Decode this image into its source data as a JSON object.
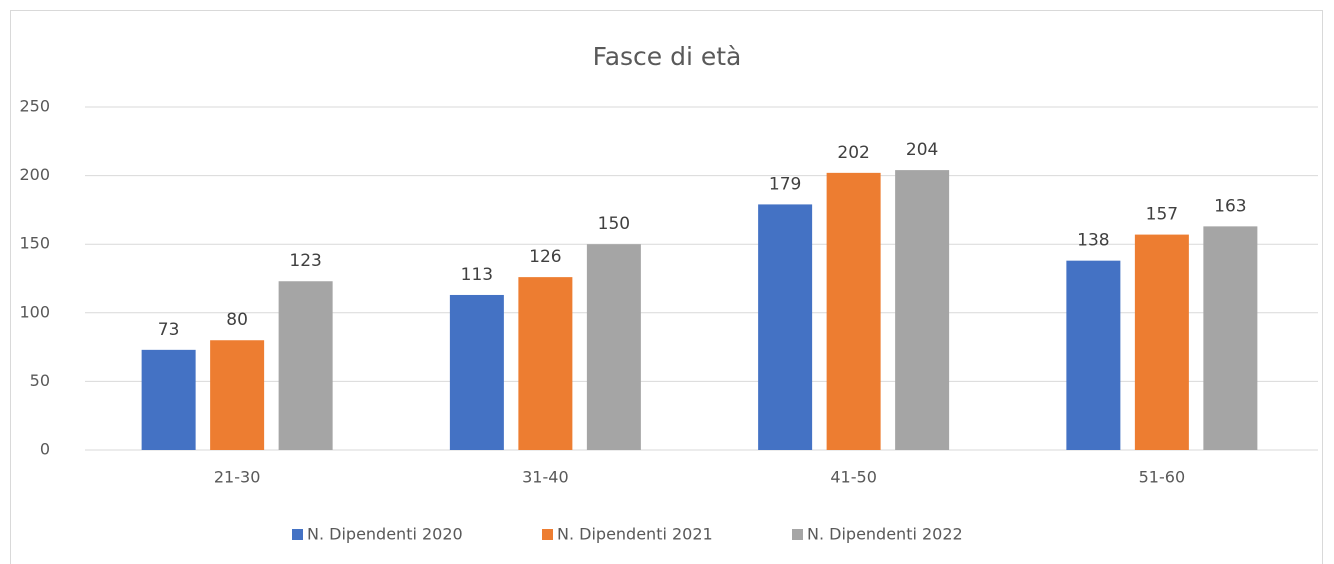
{
  "chart_data": {
    "type": "bar",
    "title": "Fasce di età",
    "categories": [
      "21-30",
      "31-40",
      "41-50",
      "51-60"
    ],
    "series": [
      {
        "name": "N. Dipendenti 2020",
        "color": "#4472c4",
        "values": [
          73,
          113,
          179,
          138
        ]
      },
      {
        "name": "N. Dipendenti 2021",
        "color": "#ed7d31",
        "values": [
          80,
          126,
          202,
          157
        ]
      },
      {
        "name": "N. Dipendenti 2022",
        "color": "#a5a5a5",
        "values": [
          123,
          150,
          204,
          163
        ]
      }
    ],
    "ylim": [
      0,
      250
    ],
    "yticks": [
      0,
      50,
      100,
      150,
      200,
      250
    ],
    "grid": true,
    "legend": "bottom"
  }
}
